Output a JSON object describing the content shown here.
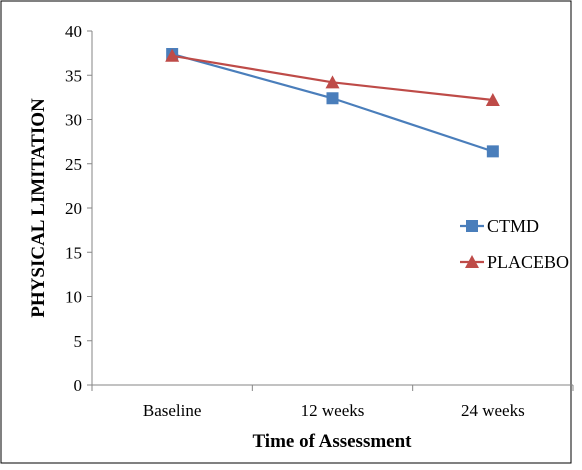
{
  "chart_data": {
    "type": "line",
    "categories": [
      "Baseline",
      "12 weeks",
      "24 weeks"
    ],
    "series": [
      {
        "name": "CTMD",
        "values": [
          37.4,
          32.4,
          26.4
        ],
        "color": "#4a7ebb",
        "marker": "square"
      },
      {
        "name": "PLACEBO",
        "values": [
          37.2,
          34.2,
          32.2
        ],
        "color": "#be4b48",
        "marker": "triangle"
      }
    ],
    "xlabel": "Time of Assessment",
    "ylabel": "PHYSICAL LIMITATION",
    "ylim": [
      0,
      40
    ],
    "yticks": [
      "0",
      "5",
      "10",
      "15",
      "20",
      "25",
      "30",
      "35",
      "40"
    ],
    "grid": false,
    "legend": "right"
  }
}
